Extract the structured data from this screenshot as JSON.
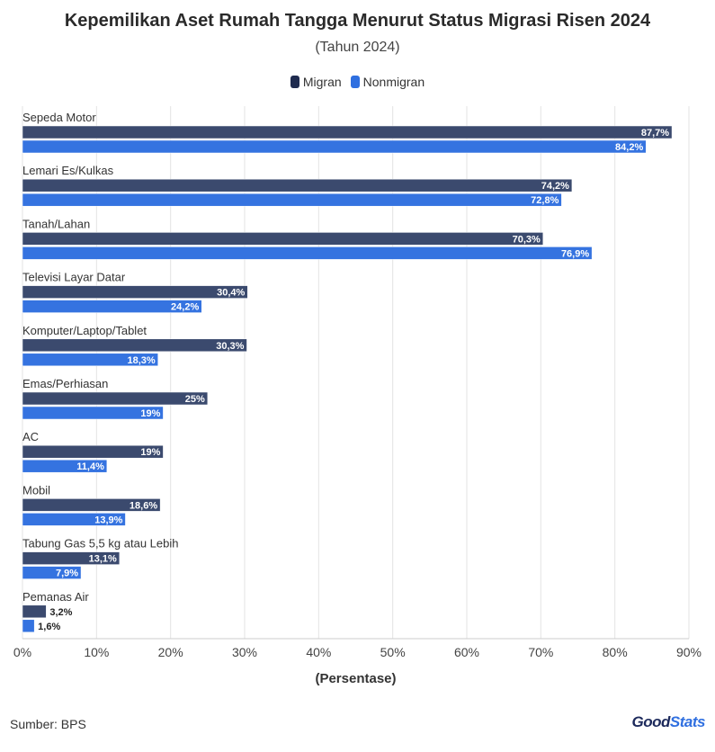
{
  "chart_data": {
    "type": "bar",
    "orientation": "horizontal",
    "title": "Kepemilikan Aset Rumah Tangga Menurut Status Migrasi Risen 2024",
    "subtitle": "(Tahun 2024)",
    "xlabel": "(Persentase)",
    "ylabel": "",
    "xlim": [
      0,
      90
    ],
    "x_ticks": [
      "0%",
      "10%",
      "20%",
      "30%",
      "40%",
      "50%",
      "60%",
      "70%",
      "80%",
      "90%"
    ],
    "grid": true,
    "legend_position": "top-center",
    "categories": [
      "Sepeda Motor",
      "Lemari Es/Kulkas",
      "Tanah/Lahan",
      "Televisi Layar Datar",
      "Komputer/Laptop/Tablet",
      "Emas/Perhiasan",
      "AC",
      "Mobil",
      "Tabung Gas 5,5 kg atau Lebih",
      "Pemanas Air"
    ],
    "series": [
      {
        "name": "Migran",
        "color": "#3b4a6e",
        "legend_color": "#1f2b4f",
        "values": [
          87.7,
          74.2,
          70.3,
          30.4,
          30.3,
          25,
          19,
          18.6,
          13.1,
          3.2
        ],
        "labels": [
          "87,7%",
          "74,2%",
          "70,3%",
          "30,4%",
          "30,3%",
          "25%",
          "19%",
          "18,6%",
          "13,1%",
          "3,2%"
        ]
      },
      {
        "name": "Nonmigran",
        "color": "#3573e0",
        "legend_color": "#2f6fe0",
        "values": [
          84.2,
          72.8,
          76.9,
          24.2,
          18.3,
          19,
          11.4,
          13.9,
          7.9,
          1.6
        ],
        "labels": [
          "84,2%",
          "72,8%",
          "76,9%",
          "24,2%",
          "18,3%",
          "19%",
          "11,4%",
          "13,9%",
          "7,9%",
          "1,6%"
        ]
      }
    ]
  },
  "footer": {
    "source": "Sumber: BPS",
    "logo_text_a": "Good",
    "logo_text_b": "Stats"
  },
  "colors": {
    "gridline": "#e3e3e3",
    "axis": "#cccccc"
  }
}
